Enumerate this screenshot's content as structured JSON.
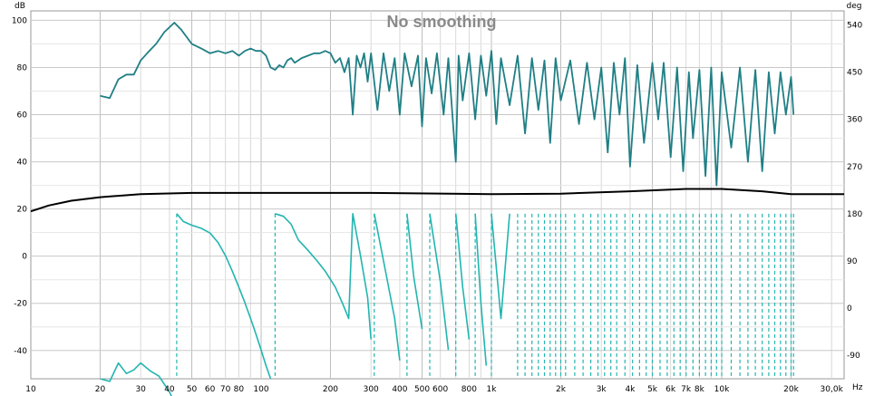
{
  "chart_data": {
    "type": "line",
    "title": "No smoothing",
    "left_axis": {
      "unit_label": "dB",
      "range": [
        -52,
        104
      ],
      "ticks": [
        {
          "value": 100,
          "label": "100"
        },
        {
          "value": 80,
          "label": "80"
        },
        {
          "value": 60,
          "label": "60"
        },
        {
          "value": 40,
          "label": "40"
        },
        {
          "value": 20,
          "label": "20"
        },
        {
          "value": 0,
          "label": "0"
        },
        {
          "value": -20,
          "label": "-20"
        },
        {
          "value": -40,
          "label": "-40"
        }
      ]
    },
    "right_axis": {
      "unit_label": "deg",
      "range": [
        -135,
        567
      ],
      "ticks": [
        {
          "value": 540,
          "label": "540"
        },
        {
          "value": 450,
          "label": "450"
        },
        {
          "value": 360,
          "label": "360"
        },
        {
          "value": 270,
          "label": "270"
        },
        {
          "value": 180,
          "label": "180"
        },
        {
          "value": 90,
          "label": "90"
        },
        {
          "value": 0,
          "label": "0"
        },
        {
          "value": -90,
          "label": "-90"
        }
      ]
    },
    "x_axis": {
      "scale": "log",
      "unit_label": "Hz",
      "range": [
        10,
        34000
      ],
      "ticks": [
        {
          "value": 10,
          "label": "10"
        },
        {
          "value": 20,
          "label": "20"
        },
        {
          "value": 30,
          "label": "30"
        },
        {
          "value": 40,
          "label": "40"
        },
        {
          "value": 50,
          "label": "50"
        },
        {
          "value": 60,
          "label": "60"
        },
        {
          "value": 70,
          "label": "70"
        },
        {
          "value": 80,
          "label": "80"
        },
        {
          "value": 100,
          "label": "100"
        },
        {
          "value": 200,
          "label": "200"
        },
        {
          "value": 300,
          "label": "300"
        },
        {
          "value": 400,
          "label": "400"
        },
        {
          "value": 500,
          "label": "500"
        },
        {
          "value": 600,
          "label": "600"
        },
        {
          "value": 800,
          "label": "800"
        },
        {
          "value": 1000,
          "label": "1k"
        },
        {
          "value": 2000,
          "label": "2k"
        },
        {
          "value": 3000,
          "label": "3k"
        },
        {
          "value": 4000,
          "label": "4k"
        },
        {
          "value": 5000,
          "label": "5k"
        },
        {
          "value": 6000,
          "label": "6k"
        },
        {
          "value": 7000,
          "label": "7k"
        },
        {
          "value": 8000,
          "label": "8k"
        },
        {
          "value": 10000,
          "label": "10k"
        },
        {
          "value": 20000,
          "label": "20k"
        },
        {
          "value": 30000,
          "label": "30,0k"
        }
      ]
    },
    "grid": true,
    "series": [
      {
        "name": "magnitude",
        "axis": "left",
        "color": "#1f7f85",
        "points": [
          [
            20,
            68
          ],
          [
            22,
            67
          ],
          [
            24,
            75
          ],
          [
            26,
            77
          ],
          [
            28,
            77
          ],
          [
            30,
            83
          ],
          [
            32,
            86
          ],
          [
            35,
            90
          ],
          [
            38,
            95
          ],
          [
            42,
            99
          ],
          [
            45,
            96
          ],
          [
            50,
            90
          ],
          [
            55,
            88
          ],
          [
            60,
            86
          ],
          [
            65,
            87
          ],
          [
            70,
            86
          ],
          [
            75,
            87
          ],
          [
            80,
            85
          ],
          [
            85,
            87
          ],
          [
            90,
            88
          ],
          [
            95,
            87
          ],
          [
            100,
            87
          ],
          [
            105,
            85
          ],
          [
            110,
            80
          ],
          [
            115,
            79
          ],
          [
            120,
            81
          ],
          [
            125,
            80
          ],
          [
            130,
            83
          ],
          [
            135,
            84
          ],
          [
            140,
            82
          ],
          [
            150,
            84
          ],
          [
            160,
            85
          ],
          [
            170,
            86
          ],
          [
            180,
            86
          ],
          [
            190,
            87
          ],
          [
            200,
            86
          ],
          [
            210,
            82
          ],
          [
            220,
            84
          ],
          [
            230,
            78
          ],
          [
            240,
            84
          ],
          [
            250,
            60
          ],
          [
            260,
            85
          ],
          [
            270,
            80
          ],
          [
            280,
            86
          ],
          [
            290,
            74
          ],
          [
            300,
            86
          ],
          [
            320,
            62
          ],
          [
            340,
            86
          ],
          [
            360,
            70
          ],
          [
            380,
            84
          ],
          [
            400,
            60
          ],
          [
            420,
            86
          ],
          [
            450,
            72
          ],
          [
            480,
            85
          ],
          [
            500,
            55
          ],
          [
            520,
            84
          ],
          [
            550,
            69
          ],
          [
            580,
            86
          ],
          [
            620,
            60
          ],
          [
            650,
            84
          ],
          [
            700,
            40
          ],
          [
            720,
            85
          ],
          [
            750,
            66
          ],
          [
            800,
            86
          ],
          [
            850,
            58
          ],
          [
            900,
            85
          ],
          [
            950,
            68
          ],
          [
            1000,
            87
          ],
          [
            1050,
            56
          ],
          [
            1100,
            84
          ],
          [
            1200,
            64
          ],
          [
            1300,
            85
          ],
          [
            1400,
            52
          ],
          [
            1500,
            84
          ],
          [
            1600,
            62
          ],
          [
            1700,
            83
          ],
          [
            1800,
            48
          ],
          [
            1900,
            84
          ],
          [
            2000,
            66
          ],
          [
            2200,
            83
          ],
          [
            2400,
            56
          ],
          [
            2600,
            82
          ],
          [
            2800,
            58
          ],
          [
            3000,
            80
          ],
          [
            3200,
            44
          ],
          [
            3400,
            82
          ],
          [
            3600,
            60
          ],
          [
            3800,
            84
          ],
          [
            4000,
            38
          ],
          [
            4300,
            81
          ],
          [
            4600,
            48
          ],
          [
            5000,
            82
          ],
          [
            5300,
            58
          ],
          [
            5600,
            82
          ],
          [
            6000,
            42
          ],
          [
            6400,
            80
          ],
          [
            6800,
            36
          ],
          [
            7200,
            78
          ],
          [
            7500,
            50
          ],
          [
            8000,
            79
          ],
          [
            8500,
            34
          ],
          [
            9000,
            80
          ],
          [
            9500,
            30
          ],
          [
            10000,
            78
          ],
          [
            11000,
            46
          ],
          [
            12000,
            80
          ],
          [
            13000,
            40
          ],
          [
            14000,
            79
          ],
          [
            15000,
            36
          ],
          [
            16000,
            78
          ],
          [
            17000,
            52
          ],
          [
            18000,
            78
          ],
          [
            19000,
            60
          ],
          [
            20000,
            76
          ],
          [
            20500,
            60
          ]
        ]
      },
      {
        "name": "phase",
        "axis": "right",
        "color": "#22b5b0",
        "points": [
          [
            20,
            -135
          ],
          [
            22,
            -140
          ],
          [
            24,
            -105
          ],
          [
            26,
            -125
          ],
          [
            28,
            -118
          ],
          [
            30,
            -105
          ],
          [
            33,
            -120
          ],
          [
            36,
            -130
          ],
          [
            40,
            -160
          ],
          [
            42,
            -180
          ],
          [
            43,
            180
          ],
          [
            46,
            165
          ],
          [
            50,
            158
          ],
          [
            55,
            152
          ],
          [
            60,
            143
          ],
          [
            65,
            125
          ],
          [
            70,
            100
          ],
          [
            75,
            70
          ],
          [
            80,
            40
          ],
          [
            85,
            10
          ],
          [
            90,
            -20
          ],
          [
            95,
            -50
          ],
          [
            100,
            -80
          ],
          [
            105,
            -110
          ],
          [
            110,
            -135
          ],
          [
            115,
            180
          ],
          [
            125,
            175
          ],
          [
            135,
            160
          ],
          [
            145,
            130
          ],
          [
            160,
            110
          ],
          [
            175,
            90
          ],
          [
            190,
            70
          ],
          [
            210,
            40
          ],
          [
            225,
            10
          ],
          [
            240,
            -20
          ],
          [
            250,
            180
          ],
          [
            270,
            100
          ],
          [
            290,
            20
          ],
          [
            300,
            -60
          ],
          [
            310,
            180
          ],
          [
            340,
            90
          ],
          [
            380,
            -20
          ],
          [
            400,
            -100
          ],
          [
            430,
            180
          ],
          [
            460,
            60
          ],
          [
            500,
            -40
          ],
          [
            540,
            180
          ],
          [
            600,
            50
          ],
          [
            650,
            -80
          ],
          [
            700,
            180
          ],
          [
            750,
            40
          ],
          [
            800,
            -60
          ],
          [
            850,
            180
          ],
          [
            900,
            10
          ],
          [
            950,
            -110
          ],
          [
            1000,
            180
          ],
          [
            1100,
            -20
          ],
          [
            1200,
            180
          ],
          [
            1300,
            -80
          ],
          [
            1400,
            180
          ],
          [
            1500,
            -120
          ],
          [
            1600,
            180
          ],
          [
            1700,
            -130
          ],
          [
            1800,
            180
          ],
          [
            1900,
            -130
          ],
          [
            2000,
            180
          ],
          [
            2100,
            -135
          ],
          [
            2300,
            180
          ],
          [
            2500,
            -135
          ],
          [
            2700,
            180
          ],
          [
            2900,
            -135
          ],
          [
            3100,
            180
          ],
          [
            3300,
            -135
          ],
          [
            3500,
            180
          ],
          [
            3800,
            -135
          ],
          [
            4100,
            180
          ],
          [
            4400,
            -135
          ],
          [
            4700,
            180
          ],
          [
            5000,
            -135
          ],
          [
            5400,
            180
          ],
          [
            5800,
            -135
          ],
          [
            6200,
            180
          ],
          [
            6600,
            -135
          ],
          [
            7000,
            180
          ],
          [
            7500,
            -135
          ],
          [
            8000,
            180
          ],
          [
            8500,
            -135
          ],
          [
            9000,
            180
          ],
          [
            9500,
            -135
          ],
          [
            10000,
            180
          ],
          [
            11000,
            -135
          ],
          [
            12000,
            180
          ],
          [
            13000,
            -135
          ],
          [
            14000,
            180
          ],
          [
            15000,
            -135
          ],
          [
            16000,
            180
          ],
          [
            17000,
            -135
          ],
          [
            18000,
            180
          ],
          [
            19000,
            -135
          ],
          [
            20000,
            180
          ],
          [
            20500,
            -135
          ]
        ]
      },
      {
        "name": "smoothed level",
        "axis": "left",
        "color": "#000000",
        "points": [
          [
            10,
            19
          ],
          [
            12,
            21.5
          ],
          [
            15,
            23.5
          ],
          [
            20,
            25
          ],
          [
            30,
            26.3
          ],
          [
            50,
            26.8
          ],
          [
            100,
            26.8
          ],
          [
            300,
            26.8
          ],
          [
            1000,
            26.3
          ],
          [
            2000,
            26.5
          ],
          [
            4000,
            27.5
          ],
          [
            7000,
            28.5
          ],
          [
            10000,
            28.5
          ],
          [
            15000,
            27.5
          ],
          [
            20000,
            26.3
          ],
          [
            34000,
            26.3
          ]
        ]
      }
    ]
  }
}
